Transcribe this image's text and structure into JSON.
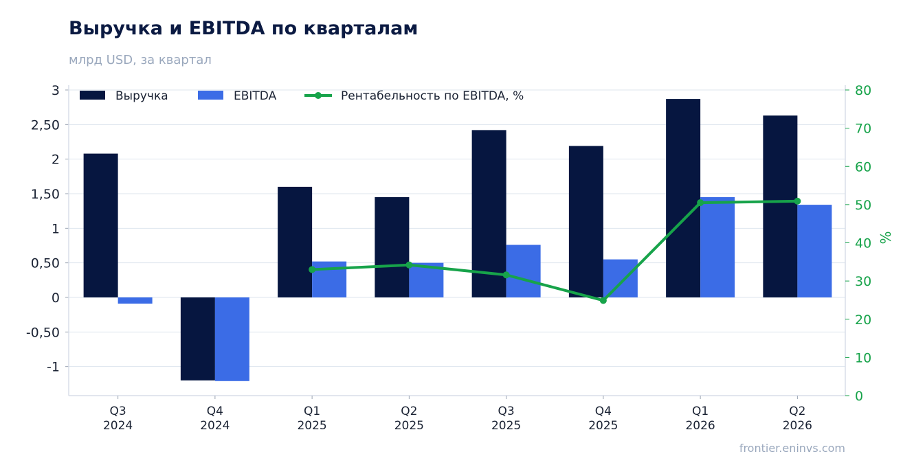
{
  "header": {
    "title": "Выручка и EBITDA по кварталам",
    "subtitle": "млрд USD, за квартал"
  },
  "footer": {
    "source": "frontier.eninvs.com"
  },
  "colors": {
    "revenue": "#061640",
    "ebitda": "#3b6ce6",
    "margin": "#17a34a",
    "grid": "#dde4ee",
    "axis_text": "#1a2233"
  },
  "chart_data": {
    "type": "bar",
    "categories": [
      [
        "Q3",
        "2024"
      ],
      [
        "Q4",
        "2024"
      ],
      [
        "Q1",
        "2025"
      ],
      [
        "Q2",
        "2025"
      ],
      [
        "Q3",
        "2025"
      ],
      [
        "Q4",
        "2025"
      ],
      [
        "Q1",
        "2026"
      ],
      [
        "Q2",
        "2026"
      ]
    ],
    "series": [
      {
        "name": "Выручка",
        "kind": "bar",
        "axis": "left",
        "values": [
          2.08,
          -1.2,
          1.6,
          1.45,
          2.42,
          2.19,
          2.87,
          2.63
        ]
      },
      {
        "name": "EBITDA",
        "kind": "bar",
        "axis": "left",
        "values": [
          -0.09,
          -1.21,
          0.52,
          0.5,
          0.76,
          0.55,
          1.45,
          1.34
        ]
      },
      {
        "name": "Рентабельность по EBITDA, %",
        "kind": "line",
        "axis": "right",
        "values": [
          null,
          null,
          33,
          34.2,
          31.6,
          24.9,
          50.5,
          50.9
        ]
      }
    ],
    "y_left": {
      "lim": [
        -1.42,
        3.0
      ],
      "ticks": [
        3,
        2.5,
        2,
        1.5,
        1,
        0.5,
        0,
        -0.5,
        -1
      ],
      "tick_labels": [
        "3",
        "2,50",
        "2",
        "1,50",
        "1",
        "0,50",
        "0",
        "-0,50",
        "-1"
      ]
    },
    "y_right": {
      "lim": [
        0,
        80
      ],
      "label": "%",
      "ticks": [
        0,
        10,
        20,
        30,
        40,
        50,
        60,
        70,
        80
      ],
      "tick_labels": [
        "0",
        "10",
        "20",
        "30",
        "40",
        "50",
        "60",
        "70",
        "80"
      ]
    },
    "grid": true,
    "legend_position": "top-left"
  }
}
